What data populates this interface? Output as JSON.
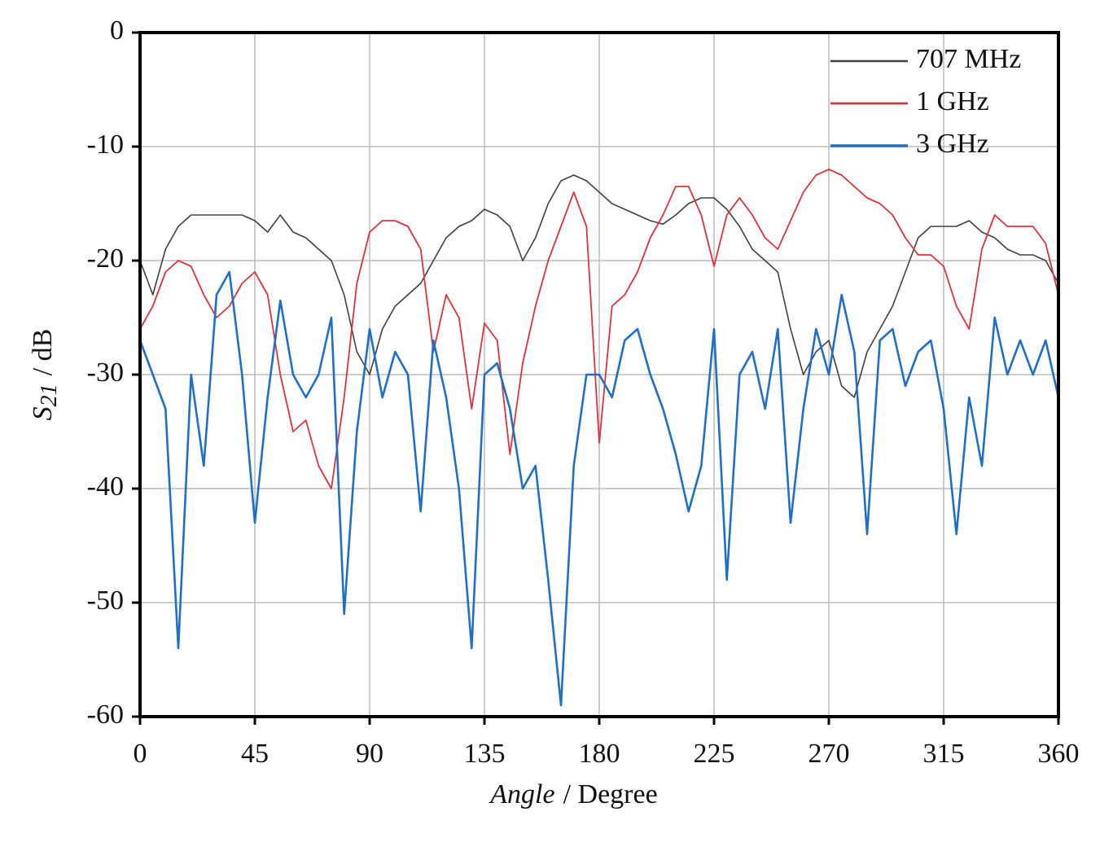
{
  "chart_data": {
    "type": "line",
    "x_label": {
      "quantity": "Angle",
      "unit": "/ Degree"
    },
    "y_label": {
      "symbol": "S",
      "subscript": "21",
      "unit": "/ dB"
    },
    "x": [
      0,
      5,
      10,
      15,
      20,
      25,
      30,
      35,
      40,
      45,
      50,
      55,
      60,
      65,
      70,
      75,
      80,
      85,
      90,
      95,
      100,
      105,
      110,
      115,
      120,
      125,
      130,
      135,
      140,
      145,
      150,
      155,
      160,
      165,
      170,
      175,
      180,
      185,
      190,
      195,
      200,
      205,
      210,
      215,
      220,
      225,
      230,
      235,
      240,
      245,
      250,
      255,
      260,
      265,
      270,
      275,
      280,
      285,
      290,
      295,
      300,
      305,
      310,
      315,
      320,
      325,
      330,
      335,
      340,
      345,
      350,
      355,
      360
    ],
    "series": [
      {
        "name": "707 MHz",
        "color": "#404040",
        "width": 1.6,
        "values": [
          -20,
          -23,
          -19,
          -17,
          -16,
          -16,
          -16,
          -16,
          -16,
          -16.5,
          -17.5,
          -16,
          -17.5,
          -18,
          -19,
          -20,
          -23,
          -28,
          -30,
          -26,
          -24,
          -23,
          -22,
          -20,
          -18,
          -17,
          -16.5,
          -15.5,
          -16,
          -17,
          -20,
          -18,
          -15,
          -13,
          -12.5,
          -13,
          -14,
          -15,
          -15.5,
          -16,
          -16.5,
          -16.8,
          -16,
          -15,
          -14.5,
          -14.5,
          -15.5,
          -17,
          -19,
          -20,
          -21,
          -26,
          -30,
          -28,
          -27,
          -31,
          -32,
          -28,
          -26,
          -24,
          -21,
          -18,
          -17,
          -17,
          -17,
          -16.5,
          -17.5,
          -18,
          -19,
          -19.5,
          -19.5,
          -20,
          -22
        ]
      },
      {
        "name": "1 GHz",
        "color": "#d8343c",
        "width": 1.8,
        "values": [
          -26,
          -24,
          -21,
          -20,
          -20.5,
          -23,
          -25,
          -24,
          -22,
          -21,
          -23,
          -30,
          -35,
          -34,
          -38,
          -40,
          -32,
          -22,
          -17.5,
          -16.5,
          -16.5,
          -17,
          -19,
          -28,
          -23,
          -25,
          -33,
          -25.5,
          -27,
          -37,
          -29,
          -24,
          -20,
          -17,
          -14,
          -17,
          -36,
          -24,
          -23,
          -21,
          -18,
          -16,
          -13.5,
          -13.5,
          -16,
          -20.5,
          -16,
          -14.5,
          -16,
          -18,
          -19,
          -16.5,
          -14,
          -12.5,
          -12,
          -12.5,
          -13.5,
          -14.5,
          -15,
          -16,
          -18,
          -19.5,
          -19.5,
          -20.5,
          -24,
          -26,
          -19,
          -16,
          -17,
          -17,
          -17,
          -18.5,
          -23
        ]
      },
      {
        "name": "3 GHz",
        "color": "#1f6fc4",
        "width": 2.6,
        "values": [
          -27,
          -30,
          -33,
          -54,
          -30,
          -38,
          -23,
          -21,
          -30,
          -43,
          -32,
          -23.5,
          -30,
          -32,
          -30,
          -25,
          -51,
          -35,
          -26,
          -32,
          -28,
          -30,
          -42,
          -27,
          -32,
          -40,
          -54,
          -30,
          -29,
          -33,
          -40,
          -38,
          -48,
          -59,
          -38,
          -30,
          -30,
          -32,
          -27,
          -26,
          -30,
          -33,
          -37,
          -42,
          -38,
          -26,
          -48,
          -30,
          -28,
          -33,
          -26,
          -43,
          -33,
          -26,
          -30,
          -23,
          -28,
          -44,
          -27,
          -26,
          -31,
          -28,
          -27,
          -33,
          -44,
          -32,
          -38,
          -25,
          -30,
          -27,
          -30,
          -27,
          -32
        ]
      }
    ],
    "xlim": [
      0,
      360
    ],
    "xticks": [
      0,
      45,
      90,
      135,
      180,
      225,
      270,
      315,
      360
    ],
    "ylim": [
      -60,
      0
    ],
    "yticks": [
      -60,
      -50,
      -40,
      -30,
      -20,
      -10,
      0
    ],
    "grid": true,
    "legend": "top-right"
  }
}
